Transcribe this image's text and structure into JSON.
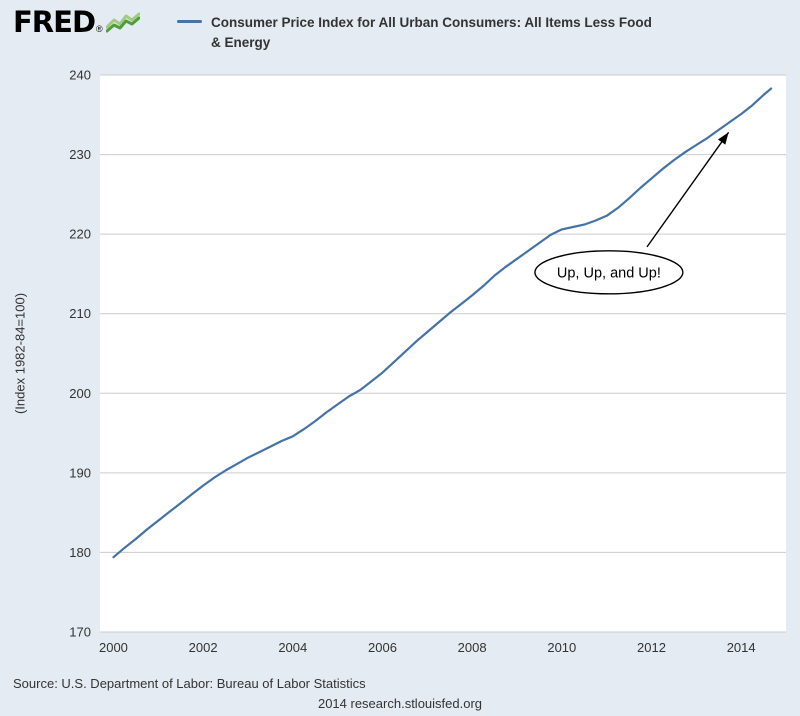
{
  "page": {
    "background": "#e4ebf2",
    "logo": {
      "text": "FRED",
      "registered": "®",
      "spark_light": "#a0cb80",
      "spark_dark": "#4f9e3d"
    },
    "legend": {
      "swatch_color": "#4572a7",
      "label_lines": [
        "Consumer Price Index for All Urban Consumers: All Items Less Food",
        "& Energy"
      ]
    }
  },
  "footer": {
    "source": "Source: U.S. Department of Labor: Bureau of Labor Statistics",
    "credit": "2014 research.stlouisfed.org"
  },
  "chart_data": {
    "type": "line",
    "title": "Consumer Price Index for All Urban Consumers: All Items Less Food & Energy",
    "xlabel": "",
    "ylabel": "(Index 1982-84=100)",
    "xlim": [
      1999.7,
      2015.0
    ],
    "ylim": [
      170,
      240
    ],
    "x_ticks": [
      2000,
      2002,
      2004,
      2006,
      2008,
      2010,
      2012,
      2014
    ],
    "y_ticks": [
      170,
      180,
      190,
      200,
      210,
      220,
      230,
      240
    ],
    "grid": true,
    "grid_color": "#cccccc",
    "plot_background": "#ffffff",
    "line_color": "#4572a7",
    "legend_position": "top",
    "x": [
      2000,
      2000.25,
      2000.5,
      2000.75,
      2001,
      2001.25,
      2001.5,
      2001.75,
      2002,
      2002.25,
      2002.5,
      2002.75,
      2003,
      2003.25,
      2003.5,
      2003.75,
      2004,
      2004.25,
      2004.5,
      2004.75,
      2005,
      2005.25,
      2005.5,
      2005.75,
      2006,
      2006.25,
      2006.5,
      2006.75,
      2007,
      2007.25,
      2007.5,
      2007.75,
      2008,
      2008.25,
      2008.5,
      2008.75,
      2009,
      2009.25,
      2009.5,
      2009.75,
      2010,
      2010.25,
      2010.5,
      2010.75,
      2011,
      2011.25,
      2011.5,
      2011.75,
      2012,
      2012.25,
      2012.5,
      2012.75,
      2013,
      2013.25,
      2013.5,
      2013.75,
      2014,
      2014.25,
      2014.5,
      2014.67
    ],
    "values": [
      179.4,
      180.6,
      181.7,
      182.9,
      184.0,
      185.1,
      186.2,
      187.3,
      188.4,
      189.4,
      190.3,
      191.1,
      191.9,
      192.6,
      193.3,
      194.0,
      194.6,
      195.5,
      196.5,
      197.6,
      198.6,
      199.6,
      200.4,
      201.5,
      202.6,
      203.9,
      205.2,
      206.5,
      207.7,
      208.9,
      210.1,
      211.2,
      212.3,
      213.5,
      214.8,
      215.9,
      216.9,
      217.9,
      218.9,
      219.9,
      220.6,
      220.9,
      221.2,
      221.7,
      222.3,
      223.3,
      224.5,
      225.8,
      227.0,
      228.2,
      229.3,
      230.3,
      231.2,
      232.1,
      233.1,
      234.1,
      235.1,
      236.2,
      237.5,
      238.3
    ],
    "annotation": {
      "text": "Up, Up, and Up!",
      "ellipse": {
        "cx": 2011.05,
        "cy": 215.2,
        "rx": 1.65,
        "ry": 2.7
      },
      "arrow": {
        "x1": 2011.9,
        "y1": 218.4,
        "x2": 2013.72,
        "y2": 232.8
      }
    }
  }
}
